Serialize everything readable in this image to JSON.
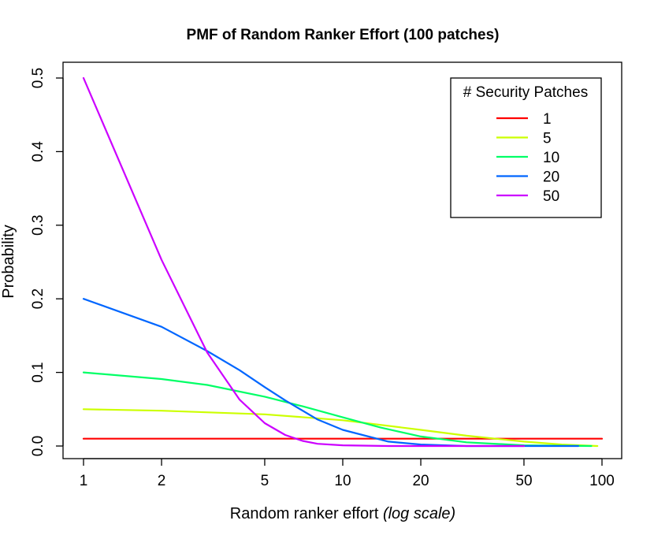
{
  "chart_data": {
    "type": "line",
    "title": "PMF of Random Ranker Effort (100 patches)",
    "xlabel": "Random ranker effort",
    "xlabel_note": "(log scale)",
    "ylabel": "Probability",
    "x_scale": "log",
    "xlim": [
      1,
      100
    ],
    "ylim": [
      0,
      0.5
    ],
    "x_ticks": [
      1,
      2,
      5,
      10,
      20,
      50,
      100
    ],
    "x_tick_labels": [
      "1",
      "2",
      "5",
      "10",
      "20",
      "50",
      "100"
    ],
    "y_ticks": [
      0.0,
      0.1,
      0.2,
      0.3,
      0.4,
      0.5
    ],
    "y_tick_labels": [
      "0.0",
      "0.1",
      "0.2",
      "0.3",
      "0.4",
      "0.5"
    ],
    "grid": false,
    "legend": {
      "title": "# Security Patches",
      "position": "top-right"
    },
    "series": [
      {
        "name": "1",
        "color": "#ff0000",
        "x": [
          1,
          100
        ],
        "y": [
          0.01,
          0.01
        ]
      },
      {
        "name": "5",
        "color": "#ccff00",
        "x": [
          1,
          2,
          5,
          10,
          20,
          30,
          50,
          70,
          96
        ],
        "y": [
          0.05,
          0.048,
          0.043,
          0.035,
          0.022,
          0.014,
          0.006,
          0.002,
          0.0
        ]
      },
      {
        "name": "10",
        "color": "#00ff66",
        "x": [
          1,
          2,
          3,
          5,
          7,
          10,
          14,
          20,
          30,
          50,
          91
        ],
        "y": [
          0.1,
          0.091,
          0.083,
          0.067,
          0.054,
          0.039,
          0.025,
          0.013,
          0.005,
          0.001,
          0.0
        ]
      },
      {
        "name": "20",
        "color": "#0066ff",
        "x": [
          1,
          2,
          3,
          4,
          5,
          6,
          8,
          10,
          15,
          20,
          30,
          81
        ],
        "y": [
          0.2,
          0.162,
          0.129,
          0.103,
          0.08,
          0.062,
          0.036,
          0.022,
          0.006,
          0.002,
          0.0,
          0.0
        ]
      },
      {
        "name": "50",
        "color": "#cc00ff",
        "x": [
          1,
          2,
          3,
          4,
          5,
          6,
          7,
          8,
          10,
          15,
          20,
          50
        ],
        "y": [
          0.5,
          0.253,
          0.127,
          0.063,
          0.031,
          0.015,
          0.007,
          0.003,
          0.001,
          0.0,
          0.0,
          0.0
        ]
      }
    ]
  }
}
